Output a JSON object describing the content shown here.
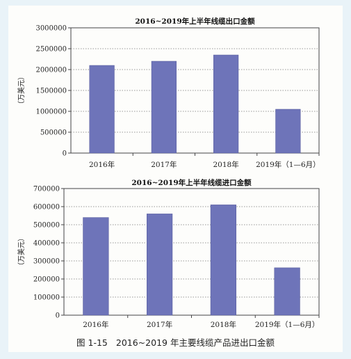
{
  "chart_data": [
    {
      "type": "bar",
      "title": "2016~2019年上半年线缆出口金额",
      "ylabel": "（万美元）",
      "xlabel": "",
      "categories": [
        "2016年",
        "2017年",
        "2018年",
        "2019年（1—6月）"
      ],
      "values": [
        2100000,
        2200000,
        2350000,
        1050000
      ],
      "yticks": [
        "0",
        "500000",
        "1000000",
        "1500000",
        "2000000",
        "2500000",
        "3000000"
      ],
      "ylim": [
        0,
        3000000
      ],
      "grid": true,
      "bar_color": "#6e74b9"
    },
    {
      "type": "bar",
      "title": "2016~2019年上半年线缆进口金额",
      "ylabel": "（万美元）",
      "xlabel": "",
      "categories": [
        "2016年",
        "2017年",
        "2018年",
        "2019年（1—6月）"
      ],
      "values": [
        540000,
        560000,
        610000,
        262000
      ],
      "yticks": [
        "0",
        "100000",
        "200000",
        "300000",
        "400000",
        "500000",
        "600000",
        "700000"
      ],
      "ylim": [
        0,
        700000
      ],
      "grid": true,
      "bar_color": "#6e74b9"
    }
  ],
  "caption": {
    "figure_number": "图 1-15",
    "text": "2016~2019 年主要线缆产品进出口金额"
  }
}
